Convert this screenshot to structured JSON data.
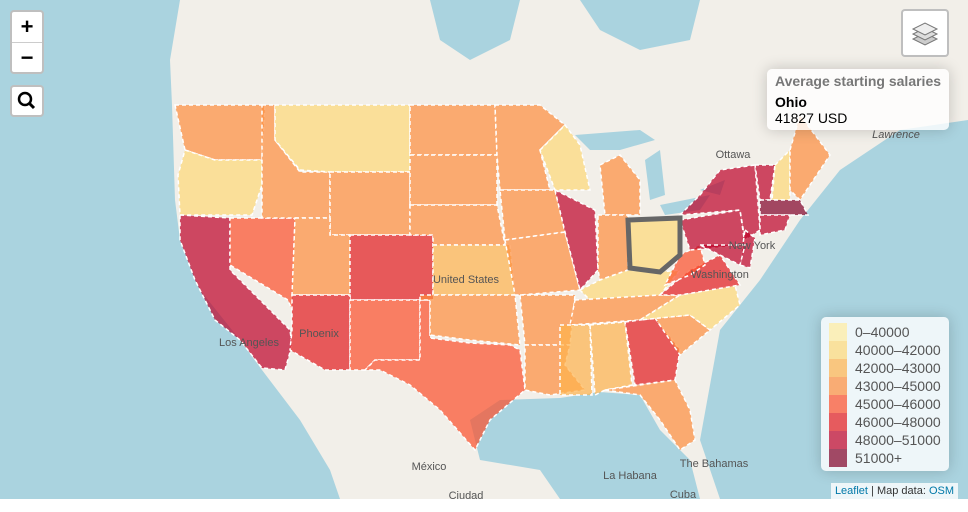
{
  "zoom_control": {
    "zoom_in": "+",
    "zoom_out": "−"
  },
  "info": {
    "title": "Average starting salaries",
    "name": "Ohio",
    "value": "41827 USD"
  },
  "legend": {
    "items": [
      {
        "label": "0–40000",
        "color": "#ffeda0"
      },
      {
        "label": "40000–42000",
        "color": "#fed976"
      },
      {
        "label": "42000–43000",
        "color": "#feb24c"
      },
      {
        "label": "43000–45000",
        "color": "#fd8d3c"
      },
      {
        "label": "45000–46000",
        "color": "#fc4e2a"
      },
      {
        "label": "46000–48000",
        "color": "#e31a1c"
      },
      {
        "label": "48000–51000",
        "color": "#bd0026"
      },
      {
        "label": "51000+",
        "color": "#800026"
      }
    ]
  },
  "attribution": {
    "leaflet": "Leaflet",
    "separator": "|",
    "text": "Map data:",
    "osm": "OSM"
  },
  "place_labels": [
    "Ottawa",
    "New York",
    "Washington",
    "United States",
    "Phoenix",
    "Los Angeles",
    "México",
    "La Habana",
    "The Bahamas",
    "Cuba",
    "Ciudad",
    "Lawrence"
  ]
}
